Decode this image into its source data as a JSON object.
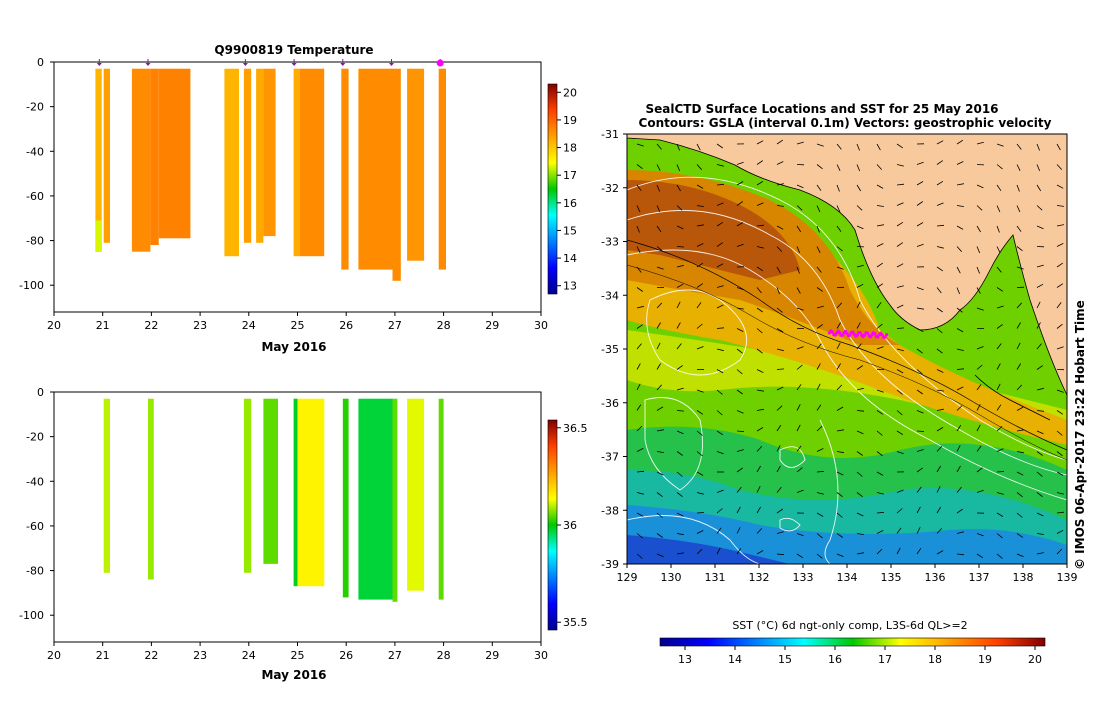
{
  "chart_data": [
    {
      "type": "heatmap",
      "title": "Q9900819  Temperature",
      "xlabel": "May 2016",
      "ylabel": "",
      "x_ticks": [
        20,
        21,
        22,
        23,
        24,
        25,
        26,
        27,
        28,
        29,
        30
      ],
      "y_ticks": [
        0,
        -20,
        -40,
        -60,
        -80,
        -100
      ],
      "xlim": [
        20,
        30
      ],
      "ylim": [
        -112,
        0
      ],
      "colorbar": {
        "min": 12.7,
        "max": 20.3,
        "ticks": [
          13,
          14,
          15,
          16,
          17,
          18,
          19,
          20
        ]
      },
      "profile_markers": [
        20.93,
        21.93,
        23.93,
        24.93,
        25.93,
        26.93,
        27.93
      ],
      "profiles": [
        {
          "x0": 20.85,
          "x1": 20.98,
          "depth": 85,
          "value": 18.2,
          "bottom_value": 17.3
        },
        {
          "x0": 21.02,
          "x1": 21.15,
          "depth": 81,
          "value": 18.4
        },
        {
          "x0": 21.6,
          "x1": 21.98,
          "depth": 85,
          "value": 18.6
        },
        {
          "x0": 21.98,
          "x1": 22.15,
          "depth": 82,
          "value": 18.7
        },
        {
          "x0": 22.15,
          "x1": 22.8,
          "depth": 79,
          "value": 18.7
        },
        {
          "x0": 23.5,
          "x1": 23.8,
          "depth": 87,
          "value": 18.2
        },
        {
          "x0": 23.9,
          "x1": 24.05,
          "depth": 81,
          "value": 18.4
        },
        {
          "x0": 24.15,
          "x1": 24.3,
          "depth": 81,
          "value": 18.3
        },
        {
          "x0": 24.3,
          "x1": 24.55,
          "depth": 78,
          "value": 18.5
        },
        {
          "x0": 24.92,
          "x1": 25.05,
          "depth": 87,
          "value": 18.3
        },
        {
          "x0": 25.05,
          "x1": 25.55,
          "depth": 87,
          "value": 18.6
        },
        {
          "x0": 25.9,
          "x1": 26.05,
          "depth": 93,
          "value": 18.6
        },
        {
          "x0": 26.25,
          "x1": 26.95,
          "depth": 93,
          "value": 18.6
        },
        {
          "x0": 26.95,
          "x1": 27.12,
          "depth": 98,
          "value": 18.6
        },
        {
          "x0": 27.25,
          "x1": 27.6,
          "depth": 89,
          "value": 18.5
        },
        {
          "x0": 27.9,
          "x1": 28.05,
          "depth": 93,
          "value": 18.6
        }
      ]
    },
    {
      "type": "heatmap",
      "title": "",
      "xlabel": "May 2016",
      "ylabel": "",
      "x_ticks": [
        20,
        21,
        22,
        23,
        24,
        25,
        26,
        27,
        28,
        29,
        30
      ],
      "y_ticks": [
        0,
        -20,
        -40,
        -60,
        -80,
        -100
      ],
      "xlim": [
        20,
        30
      ],
      "ylim": [
        -112,
        0
      ],
      "colorbar": {
        "min": 35.46,
        "max": 36.54,
        "ticks": [
          35.5,
          36,
          36.5
        ]
      },
      "profiles": [
        {
          "x0": 21.02,
          "x1": 21.15,
          "depth": 81,
          "value": 36.1
        },
        {
          "x0": 21.93,
          "x1": 22.05,
          "depth": 84,
          "value": 36.08
        },
        {
          "x0": 23.9,
          "x1": 24.05,
          "depth": 81,
          "value": 36.08
        },
        {
          "x0": 24.3,
          "x1": 24.6,
          "depth": 77,
          "value": 36.05
        },
        {
          "x0": 24.92,
          "x1": 25.0,
          "depth": 87,
          "value": 35.98
        },
        {
          "x0": 25.0,
          "x1": 25.55,
          "depth": 87,
          "value": 36.15
        },
        {
          "x0": 25.93,
          "x1": 26.05,
          "depth": 92,
          "value": 36.02
        },
        {
          "x0": 26.25,
          "x1": 26.95,
          "depth": 93,
          "value": 35.97
        },
        {
          "x0": 26.95,
          "x1": 27.05,
          "depth": 94,
          "value": 36.05
        },
        {
          "x0": 27.25,
          "x1": 27.6,
          "depth": 89,
          "value": 36.12
        },
        {
          "x0": 27.9,
          "x1": 28.0,
          "depth": 93,
          "value": 36.05
        }
      ]
    },
    {
      "type": "heatmap",
      "title": "SealCTD Surface Locations and SST for 25 May 2016",
      "subtitle": "Contours: GSLA (interval 0.1m)  Vectors: geostrophic velocity",
      "xlabel": "",
      "ylabel": "",
      "x_ticks": [
        129,
        130,
        131,
        132,
        133,
        134,
        135,
        136,
        137,
        138,
        139
      ],
      "y_ticks": [
        -31,
        -32,
        -33,
        -34,
        -35,
        -36,
        -37,
        -38,
        -39
      ],
      "xlim": [
        129,
        139
      ],
      "ylim": [
        -39,
        -31
      ],
      "colorbar_label": "SST (°C) 6d ngt-only comp, L3S-6d QL>=2",
      "colorbar": {
        "min": 12.5,
        "max": 20.2,
        "ticks": [
          13,
          14,
          15,
          16,
          17,
          18,
          19,
          20
        ]
      },
      "seal_locations_span": {
        "lon": [
          133.6,
          134.9
        ],
        "lat": -34.7
      }
    }
  ],
  "credit": "© IMOS 06-Apr-2017 23:22 Hobart Time",
  "colors": {
    "land": "#f7c99d",
    "marker": "#ff00ff",
    "marker_line": "#7a1fa0"
  }
}
